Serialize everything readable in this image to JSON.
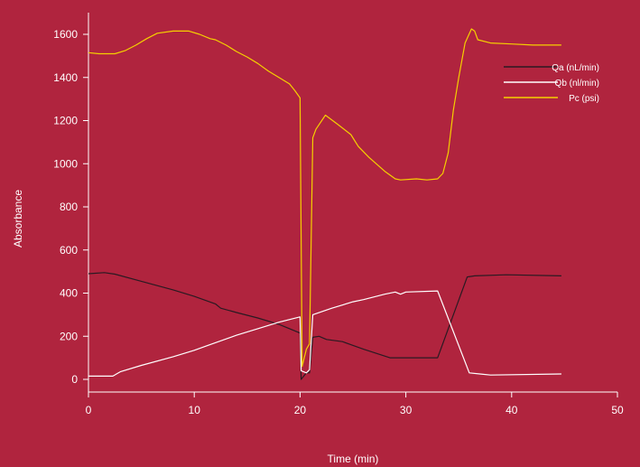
{
  "colors": {
    "background": "#B0243E",
    "axis": "#FFFFFF",
    "text": "#FFFFFF"
  },
  "chart_data": {
    "type": "line",
    "title": "",
    "xlabel": "Time (min)",
    "ylabel": "Absorbance",
    "xlim": [
      0,
      50
    ],
    "ylim": [
      -50,
      1700
    ],
    "xticks": [
      0,
      10,
      20,
      30,
      40,
      50
    ],
    "yticks": [
      0,
      200,
      400,
      600,
      800,
      1000,
      1200,
      1400,
      1600
    ],
    "grid": false,
    "legend_position": "top-right",
    "series": [
      {
        "name": "Qa (nL/min)",
        "color": "#2A1A22",
        "points": [
          [
            0,
            490
          ],
          [
            1.5,
            495
          ],
          [
            2.5,
            488
          ],
          [
            5,
            455
          ],
          [
            8,
            415
          ],
          [
            10,
            385
          ],
          [
            12,
            350
          ],
          [
            12.5,
            330
          ],
          [
            14,
            310
          ],
          [
            16,
            285
          ],
          [
            18,
            255
          ],
          [
            20,
            215
          ],
          [
            20.1,
            0
          ],
          [
            20.6,
            30
          ],
          [
            20.9,
            30
          ],
          [
            21.2,
            195
          ],
          [
            21.8,
            200
          ],
          [
            22.5,
            185
          ],
          [
            24,
            175
          ],
          [
            26,
            140
          ],
          [
            28.5,
            100
          ],
          [
            33,
            100
          ],
          [
            35.8,
            475
          ],
          [
            36.5,
            480
          ],
          [
            39.5,
            485
          ],
          [
            44.7,
            480
          ]
        ]
      },
      {
        "name": "Qb (nl/min)",
        "color": "#FFFFFF",
        "points": [
          [
            0,
            15
          ],
          [
            2.3,
            15
          ],
          [
            3,
            35
          ],
          [
            5,
            65
          ],
          [
            8,
            105
          ],
          [
            10,
            135
          ],
          [
            12,
            170
          ],
          [
            14,
            205
          ],
          [
            16,
            235
          ],
          [
            18,
            265
          ],
          [
            20,
            290
          ],
          [
            20.1,
            40
          ],
          [
            20.6,
            30
          ],
          [
            20.9,
            45
          ],
          [
            21.2,
            300
          ],
          [
            23,
            330
          ],
          [
            25,
            360
          ],
          [
            26,
            370
          ],
          [
            28,
            395
          ],
          [
            29,
            405
          ],
          [
            29.5,
            395
          ],
          [
            30,
            405
          ],
          [
            33,
            410
          ],
          [
            36,
            30
          ],
          [
            37,
            25
          ],
          [
            38,
            20
          ],
          [
            44.7,
            25
          ]
        ]
      },
      {
        "name": "Pc (psi)",
        "color": "#F5D000",
        "points": [
          [
            0,
            1515
          ],
          [
            1,
            1510
          ],
          [
            2.5,
            1510
          ],
          [
            3.5,
            1525
          ],
          [
            4.5,
            1550
          ],
          [
            5.5,
            1580
          ],
          [
            6.5,
            1605
          ],
          [
            8,
            1615
          ],
          [
            9.5,
            1615
          ],
          [
            10.5,
            1600
          ],
          [
            11.5,
            1580
          ],
          [
            12,
            1575
          ],
          [
            13,
            1550
          ],
          [
            14,
            1520
          ],
          [
            15,
            1495
          ],
          [
            16,
            1465
          ],
          [
            17,
            1430
          ],
          [
            18,
            1400
          ],
          [
            19,
            1370
          ],
          [
            19.5,
            1340
          ],
          [
            20,
            1305
          ],
          [
            20.2,
            60
          ],
          [
            20.6,
            140
          ],
          [
            20.9,
            165
          ],
          [
            21.2,
            1120
          ],
          [
            21.5,
            1160
          ],
          [
            22.4,
            1225
          ],
          [
            23.5,
            1185
          ],
          [
            24.8,
            1135
          ],
          [
            25.5,
            1080
          ],
          [
            26.5,
            1030
          ],
          [
            28,
            965
          ],
          [
            29,
            930
          ],
          [
            29.5,
            925
          ],
          [
            31,
            930
          ],
          [
            32,
            925
          ],
          [
            33,
            930
          ],
          [
            33.5,
            955
          ],
          [
            34,
            1050
          ],
          [
            34.5,
            1250
          ],
          [
            35,
            1400
          ],
          [
            35.6,
            1560
          ],
          [
            36.2,
            1625
          ],
          [
            36.5,
            1615
          ],
          [
            36.8,
            1575
          ],
          [
            38,
            1560
          ],
          [
            40,
            1555
          ],
          [
            42,
            1550
          ],
          [
            44.7,
            1550
          ]
        ]
      }
    ]
  }
}
